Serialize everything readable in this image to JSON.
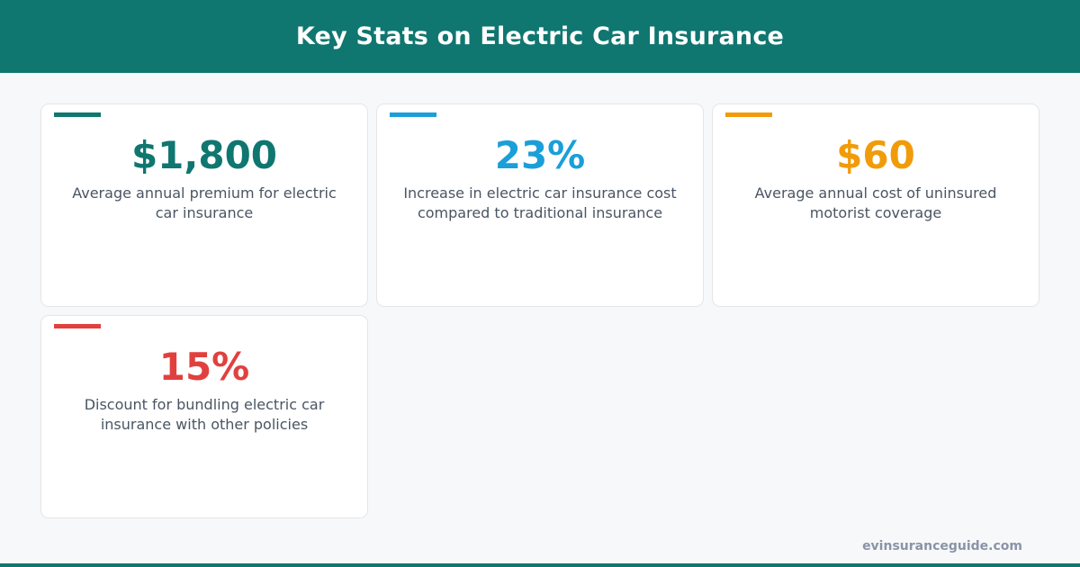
{
  "header": {
    "title": "Key Stats on Electric Car Insurance"
  },
  "stats": [
    {
      "value": "$1,800",
      "description": "Average annual premium for electric car insurance",
      "color": "#0f7670"
    },
    {
      "value": "23%",
      "description": "Increase in electric car insurance cost compared to traditional insurance",
      "color": "#1a9fd9"
    },
    {
      "value": "$60",
      "description": "Average annual cost of uninsured motorist coverage",
      "color": "#f09c0a"
    },
    {
      "value": "15%",
      "description": "Discount for bundling electric car insurance with other policies",
      "color": "#e0413f"
    }
  ],
  "footer": {
    "site": "evinsuranceguide.com"
  },
  "colors": {
    "brand": "#0f7670",
    "background": "#f7f8fa",
    "text_muted": "#4a5563"
  }
}
